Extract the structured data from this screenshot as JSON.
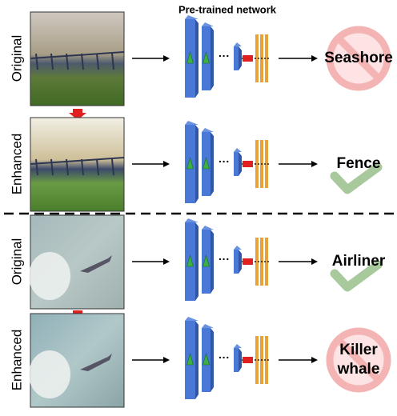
{
  "header": {
    "title": "Pre-trained network"
  },
  "rows": [
    {
      "label": "Original",
      "prediction": [
        "Seashore"
      ]
    },
    {
      "label": "Enhanced",
      "prediction": [
        "Fence"
      ]
    },
    {
      "label": "Original",
      "prediction": [
        "Airliner"
      ]
    },
    {
      "label": "Enhanced",
      "prediction": [
        "Killer",
        "whale"
      ]
    }
  ]
}
